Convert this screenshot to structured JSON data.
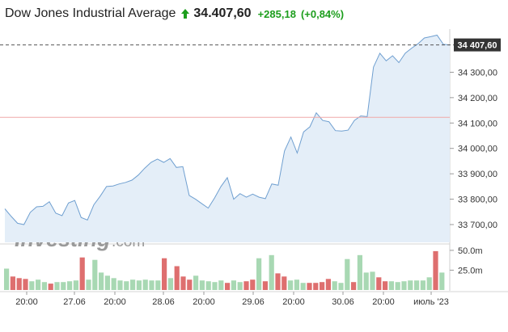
{
  "header": {
    "title": "Dow Jones Industrial Average",
    "arrow_icon": "up-arrow-icon",
    "last_price": "34.407,60",
    "change": "+285,18",
    "change_percent": "(+0,84%)",
    "up_color": "#1d9e1d"
  },
  "watermark": {
    "brand": "Investing",
    "suffix": ".com"
  },
  "price_tag": "34 407,60",
  "chart_data": {
    "type": "area",
    "ylim": [
      33630,
      34470
    ],
    "yticks": [
      33700,
      33800,
      33900,
      34000,
      34100,
      34200,
      34300
    ],
    "ytick_labels": [
      "33 700,00",
      "33 800,00",
      "33 900,00",
      "34 000,00",
      "34 100,00",
      "34 200,00",
      "34 300,00"
    ],
    "xtick_labels": [
      "20:00",
      "27.06",
      "20:00",
      "28.06",
      "20:00",
      "29.06",
      "20:00",
      "30.06",
      "20:00",
      "июль '23"
    ],
    "last_value": 34407.6,
    "reference_line": 34122.4,
    "price": [
      33762,
      33732,
      33705,
      33700,
      33748,
      33770,
      33772,
      33790,
      33745,
      33735,
      33785,
      33795,
      33728,
      33718,
      33778,
      33812,
      33850,
      33852,
      33860,
      33866,
      33875,
      33895,
      33922,
      33945,
      33958,
      33945,
      33960,
      33925,
      33928,
      33815,
      33800,
      33782,
      33765,
      33805,
      33850,
      33885,
      33800,
      33822,
      33808,
      33820,
      33808,
      33802,
      33860,
      33855,
      33990,
      34045,
      33982,
      34065,
      34085,
      34140,
      34110,
      34105,
      34070,
      34068,
      34072,
      34110,
      34128,
      34125,
      34320,
      34375,
      34345,
      34365,
      34338,
      34375,
      34395,
      34412,
      34435,
      34440,
      34446,
      34410,
      34407.6
    ],
    "volume_ylim": [
      0,
      55
    ],
    "volume_ticks": [
      25,
      50
    ],
    "volume_tick_labels": [
      "25.0m",
      "50.0m"
    ],
    "volume_colors": {
      "up": "#a8d8b3",
      "down": "#de6f6f"
    },
    "volume": [
      {
        "v": 27,
        "d": "up"
      },
      {
        "v": 17,
        "d": "down"
      },
      {
        "v": 15,
        "d": "down"
      },
      {
        "v": 14,
        "d": "down"
      },
      {
        "v": 11,
        "d": "up"
      },
      {
        "v": 13,
        "d": "up"
      },
      {
        "v": 10,
        "d": "up"
      },
      {
        "v": 8,
        "d": "down"
      },
      {
        "v": 10,
        "d": "up"
      },
      {
        "v": 10,
        "d": "up"
      },
      {
        "v": 11,
        "d": "up"
      },
      {
        "v": 12,
        "d": "up"
      },
      {
        "v": 41,
        "d": "down"
      },
      {
        "v": 13,
        "d": "up"
      },
      {
        "v": 38,
        "d": "up"
      },
      {
        "v": 22,
        "d": "up"
      },
      {
        "v": 18,
        "d": "up"
      },
      {
        "v": 15,
        "d": "up"
      },
      {
        "v": 12,
        "d": "up"
      },
      {
        "v": 11,
        "d": "up"
      },
      {
        "v": 13,
        "d": "up"
      },
      {
        "v": 12,
        "d": "up"
      },
      {
        "v": 13,
        "d": "up"
      },
      {
        "v": 12,
        "d": "up"
      },
      {
        "v": 12,
        "d": "up"
      },
      {
        "v": 40,
        "d": "down"
      },
      {
        "v": 15,
        "d": "up"
      },
      {
        "v": 30,
        "d": "down"
      },
      {
        "v": 17,
        "d": "down"
      },
      {
        "v": 13,
        "d": "down"
      },
      {
        "v": 18,
        "d": "up"
      },
      {
        "v": 12,
        "d": "up"
      },
      {
        "v": 11,
        "d": "up"
      },
      {
        "v": 10,
        "d": "up"
      },
      {
        "v": 12,
        "d": "up"
      },
      {
        "v": 9,
        "d": "down"
      },
      {
        "v": 12,
        "d": "up"
      },
      {
        "v": 10,
        "d": "up"
      },
      {
        "v": 11,
        "d": "down"
      },
      {
        "v": 13,
        "d": "down"
      },
      {
        "v": 40,
        "d": "up"
      },
      {
        "v": 11,
        "d": "down"
      },
      {
        "v": 44,
        "d": "up"
      },
      {
        "v": 21,
        "d": "down"
      },
      {
        "v": 17,
        "d": "down"
      },
      {
        "v": 12,
        "d": "up"
      },
      {
        "v": 13,
        "d": "up"
      },
      {
        "v": 9,
        "d": "up"
      },
      {
        "v": 9,
        "d": "down"
      },
      {
        "v": 9,
        "d": "down"
      },
      {
        "v": 10,
        "d": "down"
      },
      {
        "v": 14,
        "d": "down"
      },
      {
        "v": 11,
        "d": "up"
      },
      {
        "v": 9,
        "d": "up"
      },
      {
        "v": 39,
        "d": "up"
      },
      {
        "v": 10,
        "d": "down"
      },
      {
        "v": 44,
        "d": "up"
      },
      {
        "v": 22,
        "d": "up"
      },
      {
        "v": 23,
        "d": "up"
      },
      {
        "v": 16,
        "d": "down"
      },
      {
        "v": 11,
        "d": "down"
      },
      {
        "v": 11,
        "d": "up"
      },
      {
        "v": 10,
        "d": "up"
      },
      {
        "v": 11,
        "d": "up"
      },
      {
        "v": 12,
        "d": "up"
      },
      {
        "v": 12,
        "d": "up"
      },
      {
        "v": 12,
        "d": "up"
      },
      {
        "v": 16,
        "d": "up"
      },
      {
        "v": 49,
        "d": "down"
      },
      {
        "v": 22,
        "d": "up"
      }
    ]
  }
}
